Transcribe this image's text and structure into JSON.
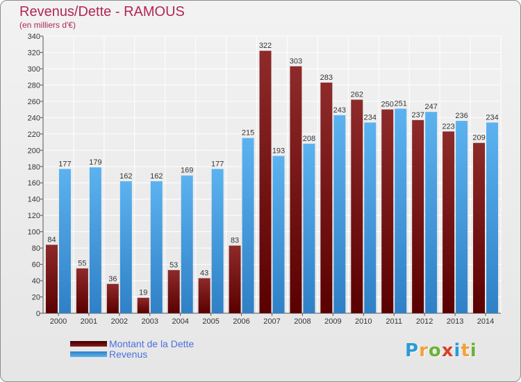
{
  "title": "Revenus/Dette - RAMOUS",
  "subtitle": "(en milliers d'€)",
  "legend": {
    "debt_label": "Montant de la Dette",
    "revenue_label": "Revenus"
  },
  "logo": {
    "letters": [
      "P",
      "r",
      "o",
      "x",
      "i",
      "t",
      "i"
    ],
    "colors": [
      "#2a9bd6",
      "#f0a23a",
      "#6bb23a",
      "#d9402b",
      "#2a9bd6",
      "#f0a23a",
      "#6bb23a"
    ]
  },
  "colors": {
    "debt": "#8b1a1a",
    "debt_dark": "#4a0000",
    "revenue": "#5aaeea",
    "revenue_dark": "#2f7fc4",
    "title": "#b02753",
    "legend_text": "#4b6fe0"
  },
  "chart_data": {
    "type": "bar",
    "title": "Revenus/Dette - RAMOUS",
    "ylabel": "(en milliers d'€)",
    "xlabel": "",
    "ylim": [
      0,
      340
    ],
    "ytick_step": 20,
    "grid": true,
    "legend_position": "bottom-left",
    "categories": [
      "2000",
      "2001",
      "2002",
      "2003",
      "2004",
      "2005",
      "2006",
      "2007",
      "2008",
      "2009",
      "2010",
      "2011",
      "2012",
      "2013",
      "2014"
    ],
    "series": [
      {
        "name": "Montant de la Dette",
        "values": [
          84,
          55,
          36,
          19,
          53,
          43,
          83,
          322,
          303,
          283,
          262,
          250,
          237,
          223,
          209
        ]
      },
      {
        "name": "Revenus",
        "values": [
          177,
          179,
          162,
          162,
          169,
          177,
          215,
          193,
          208,
          243,
          234,
          251,
          247,
          236,
          234
        ]
      }
    ]
  }
}
